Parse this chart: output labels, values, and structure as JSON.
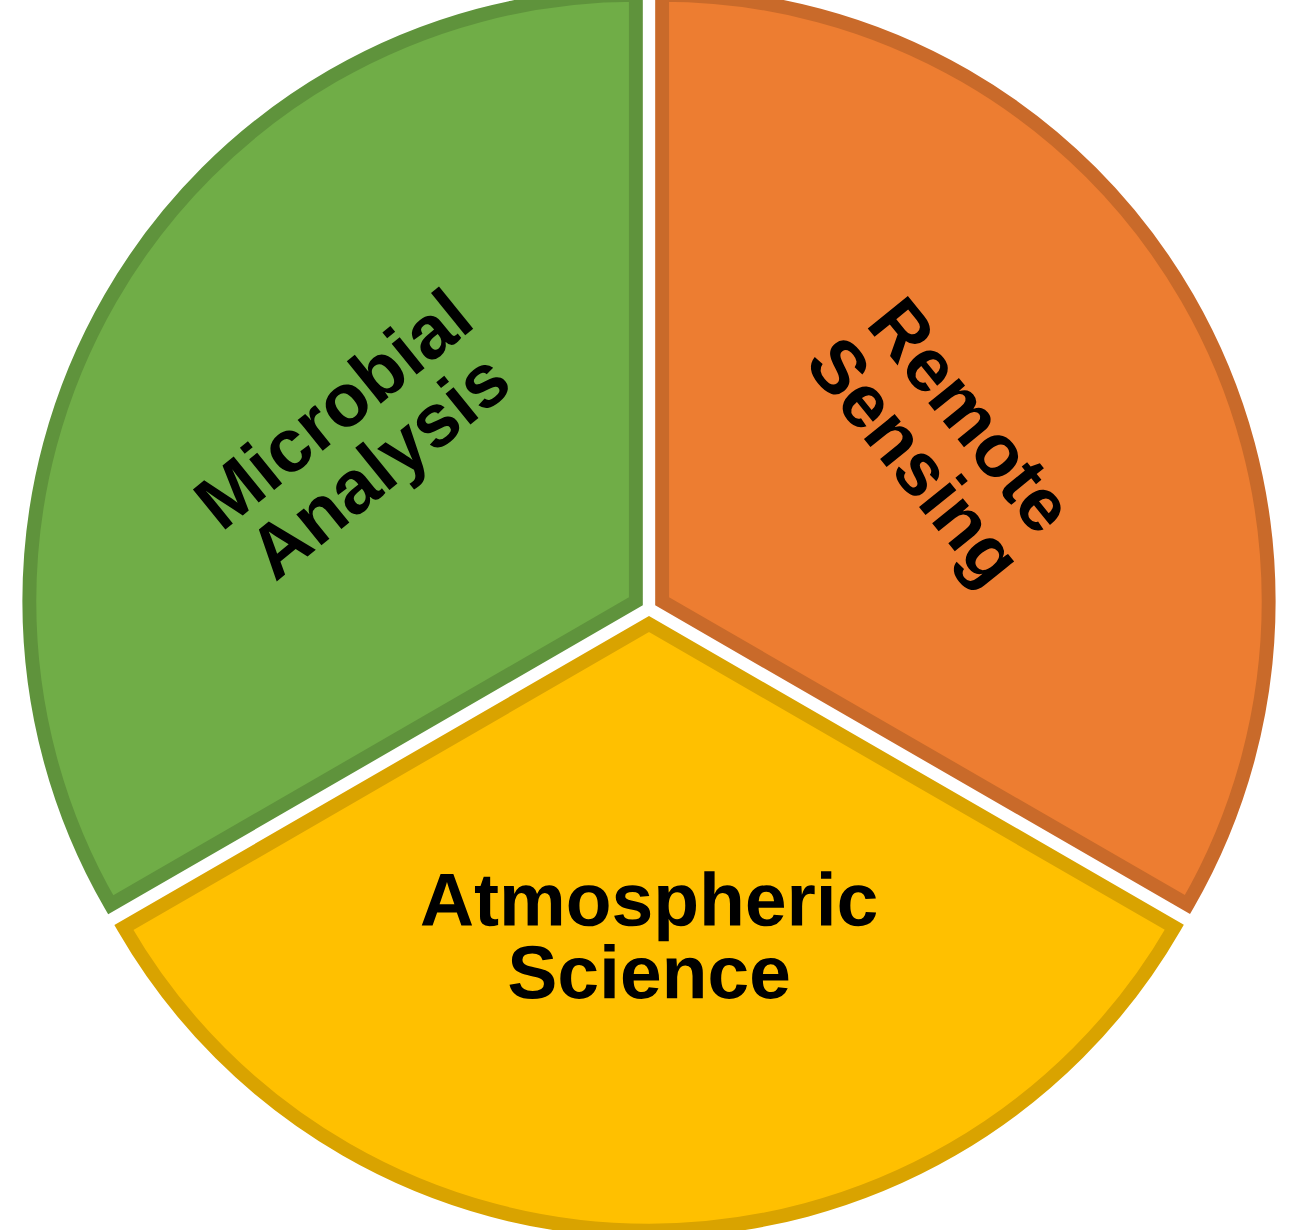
{
  "chart_data": {
    "type": "pie",
    "categories": [
      "Remote\nSensing",
      "Atmospheric\nScience",
      "Microbial\nAnalysis"
    ],
    "values": [
      33.33,
      33.33,
      33.34
    ],
    "colors": [
      "#ed7d31",
      "#ffc000",
      "#70ad47"
    ],
    "legend": false
  }
}
